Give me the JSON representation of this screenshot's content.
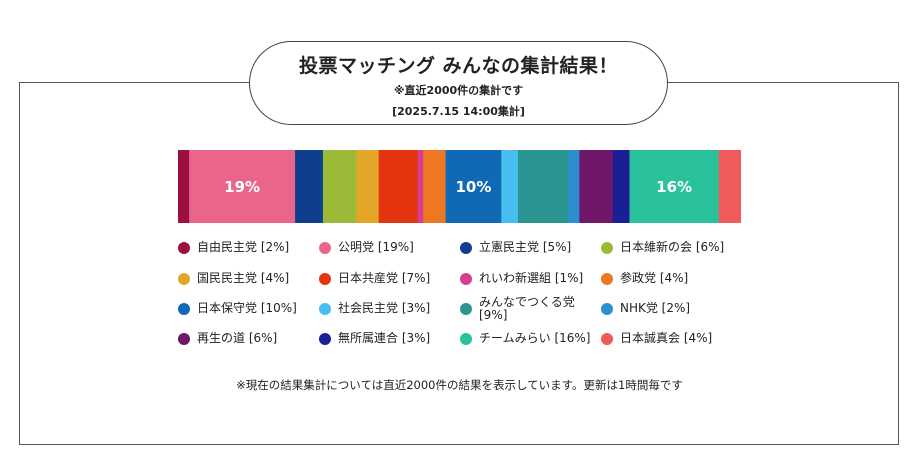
{
  "header": {
    "title": "投票マッチング みんなの集計結果！",
    "subtitle": "※直近2000件の集計です",
    "date": "[2025.7.15 14:00集計]"
  },
  "chart_data": {
    "type": "bar",
    "orientation": "horizontal-stacked-100",
    "title": "投票マッチング みんなの集計結果！",
    "series": [
      {
        "name": "自由民主党",
        "value": 2,
        "label": "[2%]",
        "color": "#9C1040"
      },
      {
        "name": "公明党",
        "value": 19,
        "label": "[19%]",
        "color": "#E9668A"
      },
      {
        "name": "立憲民主党",
        "value": 5,
        "label": "[5%]",
        "color": "#0F3F8C"
      },
      {
        "name": "日本維新の会",
        "value": 6,
        "label": "[6%]",
        "color": "#9BBB38"
      },
      {
        "name": "国民民主党",
        "value": 4,
        "label": "[4%]",
        "color": "#E3A628"
      },
      {
        "name": "日本共産党",
        "value": 7,
        "label": "[7%]",
        "color": "#E3340F"
      },
      {
        "name": "れいわ新選組",
        "value": 1,
        "label": "[1%]",
        "color": "#D93D91"
      },
      {
        "name": "参政党",
        "value": 4,
        "label": "[4%]",
        "color": "#EE7722"
      },
      {
        "name": "日本保守党",
        "value": 10,
        "label": "[10%]",
        "color": "#1169B5"
      },
      {
        "name": "社会民主党",
        "value": 3,
        "label": "[3%]",
        "color": "#47BDF0"
      },
      {
        "name": "みんなでつくる党",
        "value": 9,
        "label": "[9%]",
        "color": "#2A9591"
      },
      {
        "name": "NHK党",
        "value": 2,
        "label": "[2%]",
        "color": "#2B8FD0"
      },
      {
        "name": "再生の道",
        "value": 6,
        "label": "[6%]",
        "color": "#701769"
      },
      {
        "name": "無所属連合",
        "value": 3,
        "label": "[3%]",
        "color": "#1A1F95"
      },
      {
        "name": "チームみらい",
        "value": 16,
        "label": "[16%]",
        "color": "#29C29A"
      },
      {
        "name": "日本誠真会",
        "value": 4,
        "label": "[4%]",
        "color": "#F05A5A"
      }
    ],
    "bar_labels": [
      "19%",
      "10%",
      "16%"
    ],
    "bar_label_series": [
      1,
      8,
      14
    ]
  },
  "footnote": "※現在の結果集計については直近2000件の結果を表示しています。更新は1時間毎です"
}
